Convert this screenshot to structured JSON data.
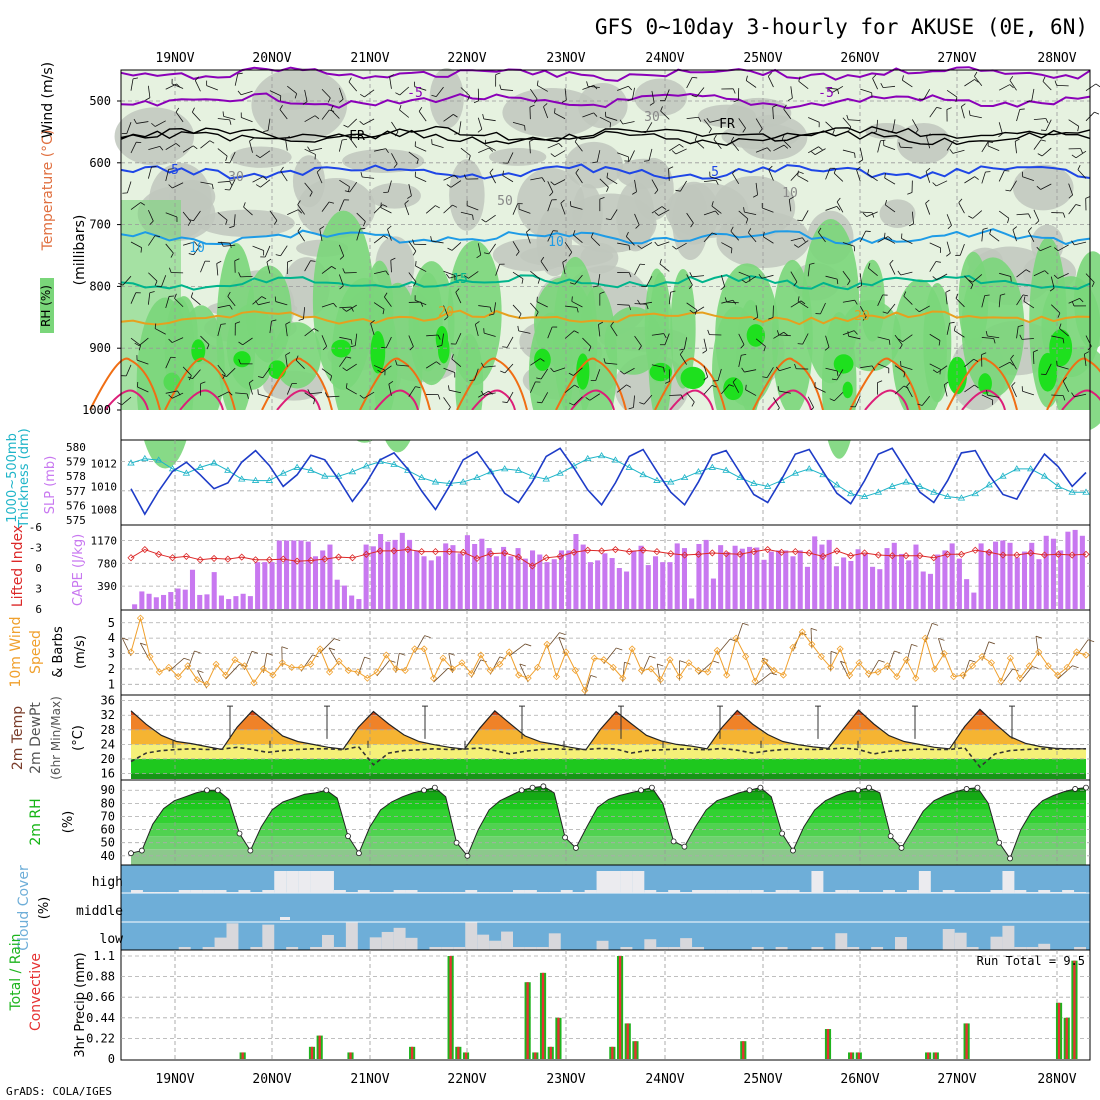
{
  "title": "GFS 0~10day 3-hourly for AKUSE (0E, 6N)",
  "credit": "GrADS: COLA/IGES",
  "colors": {
    "rh_light": "#e6f2e0",
    "rh_gray": "#bfc7bd",
    "rh_green": "#7ad67a",
    "rh_bright": "#1ee01e",
    "t_neg5": "#8a00b8",
    "t_fr": "#000000",
    "t_5": "#1e46e6",
    "t_10": "#1e9be6",
    "t_15": "#00b48c",
    "t_20": "#e6a01e",
    "t_25": "#f06e14",
    "t_30": "#dc1e78",
    "thickness": "#1eb4c8",
    "slp": "#1e3cc8",
    "cape": "#c878f0",
    "lifted": "#dc2828",
    "wind10m": "#f0a02d",
    "rh2m": "#14b414",
    "cloud_bg": "#6eaed8",
    "cloud_box": "#ebebef",
    "precip_total": "#1eb41e",
    "precip_conv": "#e63232"
  },
  "dates": [
    "19NOV",
    "20NOV",
    "21NOV",
    "22NOV",
    "23NOV",
    "24NOV",
    "25NOV",
    "26NOV",
    "27NOV",
    "28NOV"
  ],
  "panels": {
    "profile": {
      "ylabel_rh": "RH (%)",
      "ylabel_temp": "Temperature (°C)",
      "ylabel_wind": "Wind (m/s)",
      "ylabel_p": "(millibars)",
      "yticks": [
        "500",
        "600",
        "700",
        "800",
        "900",
        "1000"
      ],
      "contour_labels": [
        "-5",
        "-5",
        "FR",
        "FR",
        "5",
        "5",
        "10",
        "10",
        "15",
        "20",
        "20",
        "30",
        "30",
        "50",
        "10"
      ]
    },
    "thickness_slp": {
      "ylabel1": "Thickness (dm)",
      "ylabel2": "1000~500mb",
      "ylabel3": "SLP (mb)",
      "yticks_left": [
        "580",
        "579",
        "578",
        "577",
        "576",
        "575"
      ],
      "yticks_right": [
        "1012",
        "1010",
        "1008"
      ]
    },
    "cape_li": {
      "ylabel1": "Lifted Index",
      "ylabel2": "CAPE (J/kg)",
      "yticks_left": [
        "-6",
        "-3",
        "0",
        "3",
        "6"
      ],
      "yticks_right": [
        "1170",
        "780",
        "390"
      ]
    },
    "wind10m": {
      "ylabel1": "10m Wind",
      "ylabel2": "Speed",
      "ylabel3": "(m/s)",
      "ylabel4": "& Barbs",
      "yticks": [
        "5",
        "4",
        "3",
        "2",
        "1"
      ]
    },
    "temp2m": {
      "ylabel1": "2m Temp",
      "ylabel2": "2m DewPt",
      "ylabel3": "(6hr Min/Max)",
      "ylabel4": "(°C)",
      "yticks": [
        "36",
        "32",
        "28",
        "24",
        "20",
        "16"
      ]
    },
    "rh2m": {
      "ylabel1": "2m RH",
      "ylabel2": "(%)",
      "yticks": [
        "90",
        "80",
        "70",
        "60",
        "50",
        "40"
      ]
    },
    "cloud": {
      "ylabel1": "Cloud Cover",
      "ylabel2": "(%)",
      "levels": [
        "high",
        "middle",
        "low"
      ]
    },
    "precip": {
      "ylabel1": "Total / Rain",
      "ylabel2": "Convective",
      "ylabel3": "3hr Precip (mm)",
      "yticks": [
        "1.1",
        "0.88",
        "0.66",
        "0.44",
        "0.22",
        "0"
      ],
      "run_total": "Run Total = 9.5"
    }
  },
  "chart_data": [
    {
      "type": "line",
      "title": "1000~500mb Thickness (dm) / SLP (mb)",
      "series": [
        {
          "name": "Thickness",
          "unit": "dm",
          "values": [
            578.9,
            579.2,
            579.1,
            578.5,
            578.2,
            578.6,
            578.9,
            578.4,
            577.8,
            577.7,
            577.7,
            578.2,
            578.6,
            578.4,
            578.0,
            578.0,
            578.3,
            578.7,
            579.0,
            578.8,
            578.4,
            577.9,
            577.6,
            577.5,
            577.6,
            577.9,
            578.3,
            578.5,
            578.4,
            578.0,
            577.8,
            578.2,
            578.7,
            579.2,
            579.4,
            579.1,
            578.6,
            578.1,
            577.7,
            577.6,
            577.9,
            578.3,
            578.6,
            578.4,
            577.9,
            577.5,
            577.3,
            577.7,
            578.2,
            578.5,
            578.1,
            577.4,
            576.8,
            576.6,
            576.9,
            577.3,
            577.6,
            577.3,
            576.9,
            576.6,
            576.5,
            576.8,
            577.4,
            578.0,
            578.5,
            578.5,
            578.0,
            577.3,
            576.9,
            576.9
          ]
        },
        {
          "name": "SLP",
          "unit": "mb",
          "values": [
            1009.8,
            1007.6,
            1009.6,
            1011.3,
            1012.1,
            1011.0,
            1009.8,
            1010.3,
            1012.1,
            1013.1,
            1011.8,
            1010.0,
            1011.0,
            1012.7,
            1012.3,
            1010.6,
            1008.7,
            1010.3,
            1012.3,
            1012.9,
            1011.5,
            1009.6,
            1008.0,
            1010.0,
            1012.3,
            1013.0,
            1011.3,
            1009.4,
            1008.6,
            1010.4,
            1012.6,
            1013.3,
            1011.6,
            1009.7,
            1008.4,
            1010.3,
            1012.6,
            1013.2,
            1011.3,
            1009.5,
            1008.4,
            1010.4,
            1012.7,
            1013.1,
            1011.2,
            1009.3,
            1008.6,
            1010.6,
            1012.8,
            1013.2,
            1011.3,
            1009.4,
            1008.5,
            1010.5,
            1012.8,
            1013.3,
            1011.4,
            1009.5,
            1008.6,
            1010.5,
            1012.9,
            1013.1,
            1011.0,
            1009.3,
            1008.9,
            1011.0,
            1012.8,
            1011.7,
            1010.0,
            1011.2
          ]
        }
      ]
    },
    {
      "type": "bar",
      "title": "CAPE (J/kg) / Lifted Index",
      "series": [
        {
          "name": "CAPE",
          "unit": "J/kg",
          "values": [
            80,
            300,
            260,
            200,
            240,
            290,
            350,
            330,
            670,
            240,
            250,
            630,
            230,
            170,
            220,
            260,
            220,
            800,
            800,
            800,
            1170,
            1170,
            1170,
            1170,
            1150,
            900,
            1000,
            1100,
            500,
            400,
            230,
            170,
            1100,
            1070,
            1280,
            1150,
            1180,
            1300,
            1180,
            1000,
            900,
            830,
            900,
            1120,
            1090,
            950,
            1260,
            1110,
            1200,
            1040,
            900,
            1060,
            900,
            1040,
            860,
            1000,
            930,
            800,
            850,
            1000,
            1000,
            1280,
            1100,
            800,
            830,
            950,
            870,
            700,
            640,
            1000,
            1080,
            750,
            900,
            800,
            800,
            1120,
            1040,
            180,
            1110,
            1180,
            520,
            1090,
            970,
            1080,
            1030,
            1060,
            1050,
            840,
            980,
            1000,
            1000,
            900,
            1000,
            720,
            1240,
            1100,
            1180,
            730,
            880,
            820,
            1020,
            940,
            720,
            680,
            1040,
            1130,
            940,
            830,
            1100,
            640,
            600,
            930,
            1000,
            1120,
            860,
            510,
            280,
            1120,
            1000,
            1150,
            1170,
            1130,
            880,
            980,
            1130,
            850,
            1250,
            1200,
            1000,
            1320,
            1350,
            1250
          ]
        },
        {
          "name": "Lifted Index",
          "values": [
            -1.5,
            -2.7,
            -2.0,
            -1.5,
            -1.7,
            -1.2,
            -1.4,
            -1.3,
            -1.6,
            -1.2,
            -1.2,
            -1.3,
            -1.0,
            -1.1,
            -1.3,
            -1.6,
            -1.5,
            -2.0,
            -2.5,
            -2.5,
            -2.7,
            -2.4,
            -2.4,
            -2.4,
            -2.3,
            -1.4,
            -2.1,
            -2.2,
            -1.6,
            -0.3,
            -1.5,
            -1.7,
            -2.3,
            -2.6,
            -2.5,
            -2.7,
            -2.4,
            -2.6,
            -2.4,
            -2.1,
            -1.9,
            -2.0,
            -2.2,
            -2.1,
            -2.0,
            -2.4,
            -2.7,
            -2.3,
            -2.4,
            -2.2,
            -1.7,
            -2.5,
            -1.8,
            -2.2,
            -1.9,
            -1.8,
            -1.8,
            -1.8,
            -1.5,
            -2.0,
            -2.0,
            -2.6,
            -2.3,
            -1.9,
            -1.9,
            -2.2,
            -1.9,
            -2.0,
            -1.9,
            -2.0
          ]
        }
      ]
    },
    {
      "type": "line",
      "title": "10m Wind Speed (m/s)",
      "series": [
        {
          "name": "10m Wind Speed",
          "unit": "m/s",
          "values": [
            3.1,
            5.3,
            2.8,
            1.8,
            2.1,
            1.5,
            2.2,
            1.3,
            1.0,
            2.3,
            1.6,
            2.6,
            2.2,
            1.1,
            2.0,
            1.6,
            2.4,
            2.1,
            2.1,
            2.3,
            3.3,
            1.8,
            2.5,
            1.9,
            1.8,
            1.4,
            1.8,
            2.9,
            2.0,
            1.9,
            3.3,
            3.3,
            1.4,
            2.7,
            2.0,
            2.4,
            1.7,
            2.9,
            1.9,
            2.3,
            3.1,
            1.6,
            1.4,
            2.1,
            3.6,
            1.5,
            3.1,
            1.9,
            0.6,
            2.7,
            2.6,
            2.1,
            1.4,
            3.3,
            1.9,
            2.0,
            1.3,
            2.6,
            1.5,
            2.4,
            1.9,
            1.8,
            3.2,
            1.6,
            4.0,
            2.8,
            1.2,
            2.5,
            1.9,
            1.6,
            3.4,
            4.4,
            3.6,
            2.8,
            2.1,
            3.3,
            1.6,
            2.4,
            1.7,
            1.8,
            2.2,
            1.5,
            2.6,
            1.4,
            4.0,
            2.0,
            3.0,
            1.5,
            1.6,
            2.2,
            2.8,
            2.4,
            1.2,
            2.7,
            1.4,
            2.2,
            3.1,
            2.2,
            1.6,
            2.1,
            3.1,
            2.9
          ]
        }
      ]
    },
    {
      "type": "area",
      "title": "2m Temp / 2m DewPt (°C)",
      "series": [
        {
          "name": "2m Temp",
          "unit": "°C",
          "values": [
            33.2,
            29.5,
            26.5,
            24.8,
            24.2,
            23.4,
            22.6,
            28.7,
            33.2,
            29.8,
            26.3,
            24.8,
            24.0,
            23.2,
            22.7,
            28.7,
            33.0,
            29.6,
            26.6,
            24.8,
            23.9,
            23.2,
            22.7,
            28.4,
            33.2,
            29.7,
            26.3,
            24.7,
            24.0,
            23.2,
            22.5,
            28.3,
            33.0,
            29.7,
            26.5,
            24.9,
            24.0,
            23.5,
            22.8,
            28.7,
            33.3,
            29.6,
            26.7,
            24.8,
            23.9,
            23.3,
            22.9,
            28.3,
            33.4,
            29.6,
            26.4,
            24.8,
            24.0,
            23.2,
            22.8,
            28.9,
            33.6,
            29.7,
            26.1,
            24.3,
            23.4,
            22.9,
            22.8,
            22.8
          ]
        },
        {
          "name": "2m DewPt",
          "unit": "°C",
          "values": [
            19.3,
            21.6,
            22.3,
            22.6,
            22.8,
            22.6,
            22.7,
            23.2,
            22.6,
            21.8,
            22.3,
            22.6,
            22.8,
            22.8,
            22.5,
            23.4,
            18.4,
            21.6,
            22.3,
            22.5,
            22.8,
            22.6,
            22.7,
            23.0,
            22.3,
            21.4,
            22.1,
            22.6,
            22.8,
            22.6,
            22.6,
            22.9,
            22.7,
            21.6,
            22.3,
            22.5,
            22.7,
            22.7,
            22.5,
            22.9,
            22.4,
            21.6,
            22.2,
            22.6,
            22.7,
            22.6,
            22.7,
            23.0,
            22.6,
            21.4,
            22.1,
            22.4,
            22.7,
            22.6,
            22.6,
            23.1,
            17.8,
            21.4,
            22.3,
            22.6,
            22.8,
            22.7,
            22.8,
            22.8
          ]
        }
      ]
    },
    {
      "type": "area",
      "title": "2m RH (%)",
      "series": [
        {
          "name": "2m RH",
          "unit": "%",
          "values": [
            42,
            44,
            64,
            76,
            82,
            85,
            88,
            90,
            90,
            83,
            57,
            44,
            62,
            75,
            81,
            84,
            87,
            88,
            90,
            84,
            55,
            42,
            62,
            75,
            81,
            85,
            88,
            90,
            92,
            85,
            50,
            40,
            60,
            75,
            82,
            86,
            90,
            92,
            93,
            88,
            54,
            46,
            62,
            77,
            83,
            86,
            88,
            90,
            92,
            80,
            51,
            47,
            62,
            75,
            82,
            85,
            88,
            90,
            92,
            85,
            57,
            44,
            62,
            75,
            82,
            86,
            89,
            90,
            92,
            88,
            55,
            46,
            60,
            74,
            82,
            86,
            89,
            91,
            92,
            80,
            50,
            38,
            60,
            74,
            82,
            86,
            89,
            91,
            92
          ]
        }
      ]
    },
    {
      "type": "bar",
      "title": "3hr Precip (mm)",
      "run_total": 9.5,
      "series": [
        {
          "name": "3hr Precip",
          "unit": "mm",
          "values": [
            0,
            0,
            0,
            0,
            0,
            0,
            0,
            0,
            0,
            0,
            0,
            0,
            0,
            0,
            0.07,
            0,
            0,
            0,
            0,
            0,
            0,
            0,
            0,
            0.13,
            0.25,
            0,
            0,
            0,
            0.07,
            0,
            0,
            0,
            0,
            0,
            0,
            0,
            0.13,
            0,
            0,
            0,
            0,
            1.1,
            0.13,
            0.07,
            0,
            0,
            0,
            0,
            0,
            0,
            0,
            0.82,
            0.07,
            0.92,
            0.13,
            0.44,
            0,
            0,
            0,
            0,
            0,
            0,
            0.13,
            1.1,
            0.38,
            0.19,
            0,
            0,
            0,
            0,
            0,
            0,
            0,
            0,
            0,
            0,
            0,
            0,
            0,
            0.19,
            0,
            0,
            0,
            0,
            0,
            0,
            0,
            0,
            0,
            0,
            0.32,
            0,
            0,
            0.07,
            0.07,
            0,
            0,
            0,
            0,
            0,
            0,
            0,
            0,
            0.07,
            0.07,
            0,
            0,
            0,
            0.38,
            0,
            0,
            0,
            0,
            0,
            0,
            0,
            0,
            0,
            0,
            0,
            0.6,
            0.44,
            1.05,
            0
          ]
        }
      ]
    }
  ]
}
